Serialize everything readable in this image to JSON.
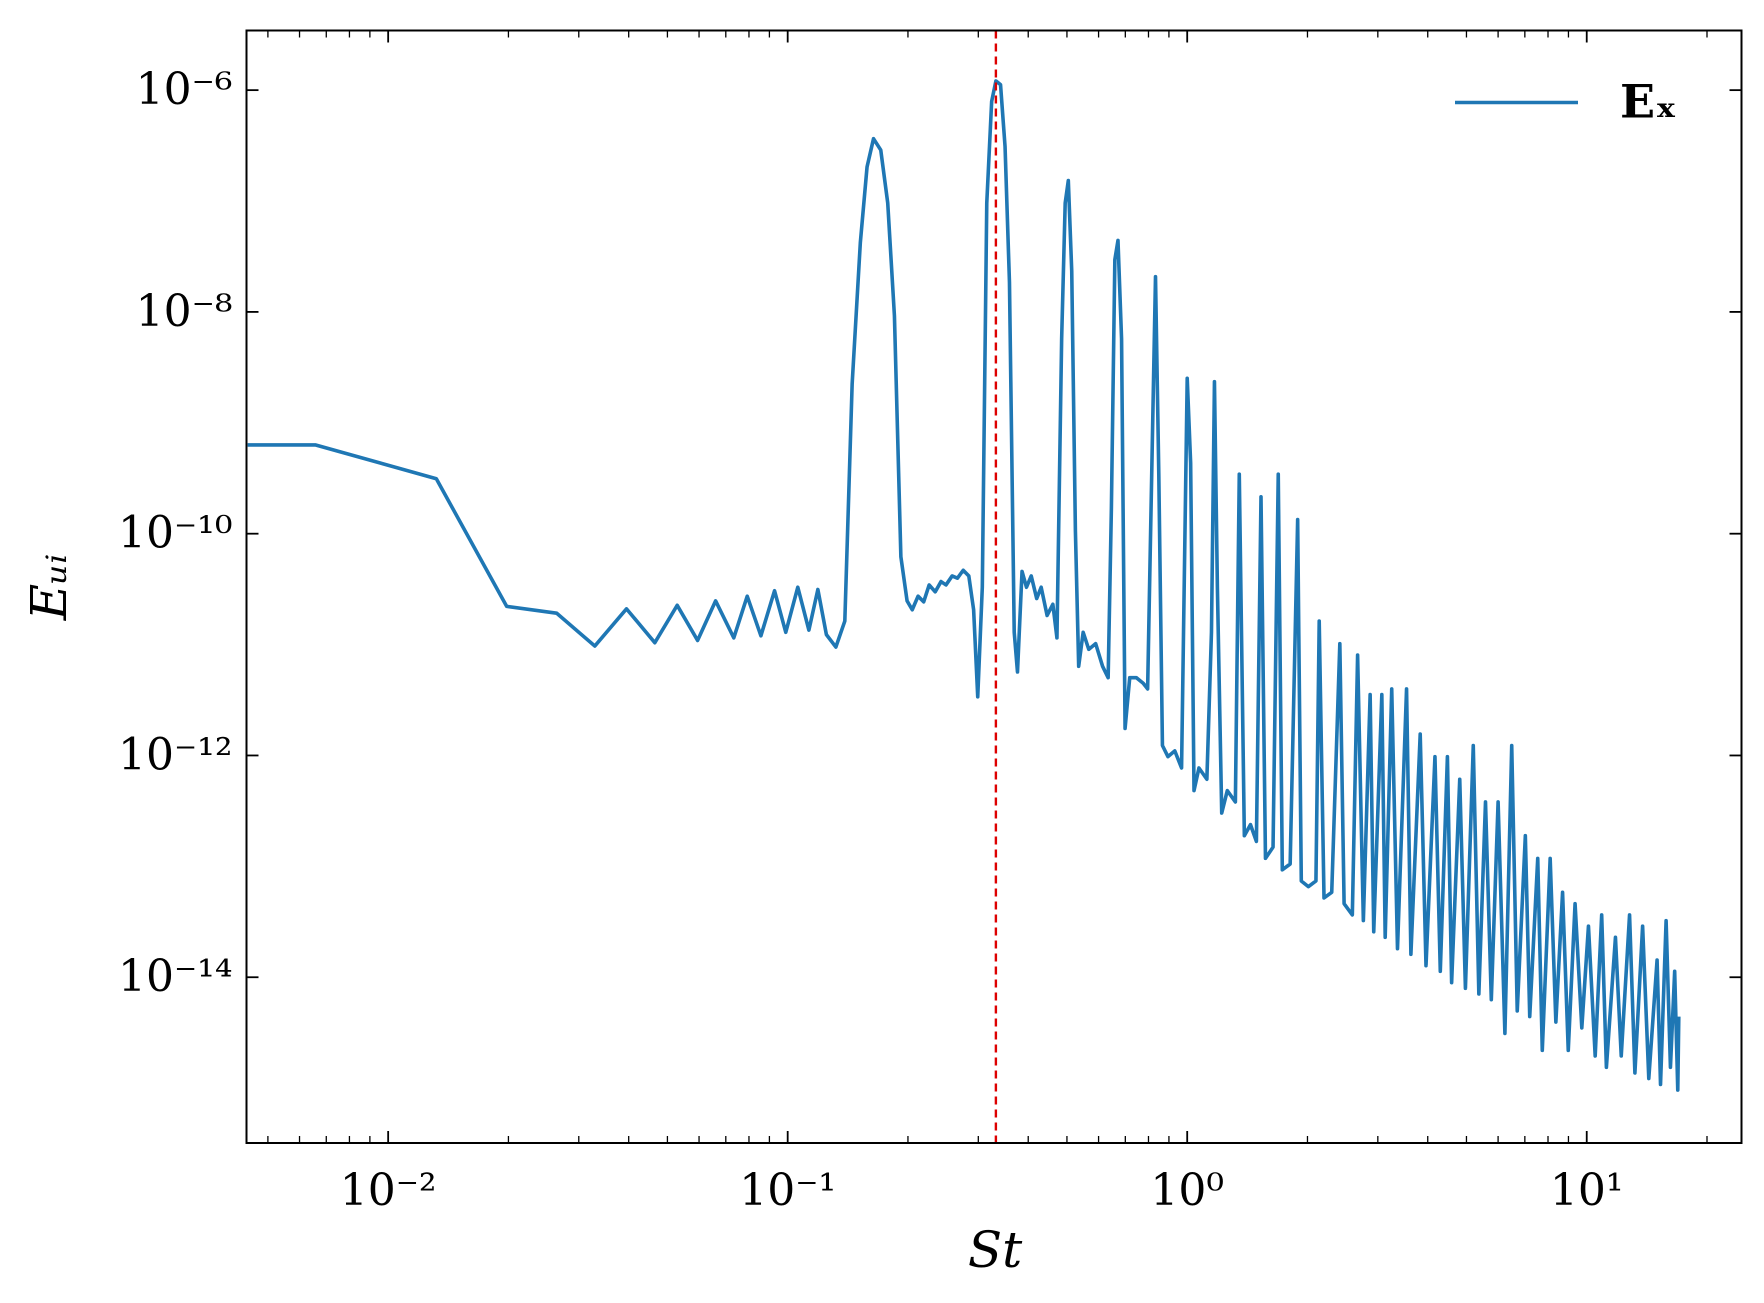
{
  "chart_data": {
    "type": "line",
    "xlabel": "St",
    "ylabel": "Eᵤᵢ",
    "xscale": "log",
    "yscale": "log",
    "xlim": [
      0.00442,
      24.4
    ],
    "ylim": [
      3.2e-16,
      3.45e-06
    ],
    "xticks": [
      {
        "value": 0.01,
        "label": "10⁻²"
      },
      {
        "value": 0.1,
        "label": "10⁻¹"
      },
      {
        "value": 1,
        "label": "10⁰"
      },
      {
        "value": 10,
        "label": "10¹"
      }
    ],
    "yticks": [
      {
        "value": 1e-14,
        "label": "10⁻¹⁴"
      },
      {
        "value": 1e-12,
        "label": "10⁻¹²"
      },
      {
        "value": 1e-10,
        "label": "10⁻¹⁰"
      },
      {
        "value": 1e-08,
        "label": "10⁻⁸"
      },
      {
        "value": 1e-06,
        "label": "10⁻⁶"
      }
    ],
    "minor_ticks": {
      "x": true,
      "y": false
    },
    "grid": false,
    "legend": "upper right",
    "vline": {
      "x": 0.332,
      "color": "#dd0000",
      "dashed": true
    },
    "x": [
      0.00445,
      0.00657,
      0.0132,
      0.0198,
      0.0264,
      0.0329,
      0.0395,
      0.0465,
      0.0529,
      0.0595,
      0.066,
      0.0733,
      0.0792,
      0.0857,
      0.0927,
      0.0989,
      0.106,
      0.113,
      0.119,
      0.125,
      0.132,
      0.139,
      0.145,
      0.152,
      0.158,
      0.164,
      0.171,
      0.178,
      0.185,
      0.192,
      0.199,
      0.205,
      0.212,
      0.219,
      0.226,
      0.234,
      0.242,
      0.249,
      0.258,
      0.266,
      0.275,
      0.284,
      0.292,
      0.299,
      0.307,
      0.315,
      0.324,
      0.332,
      0.341,
      0.35,
      0.359,
      0.369,
      0.376,
      0.386,
      0.396,
      0.407,
      0.42,
      0.431,
      0.446,
      0.461,
      0.472,
      0.485,
      0.495,
      0.504,
      0.514,
      0.525,
      0.535,
      0.549,
      0.567,
      0.59,
      0.614,
      0.634,
      0.646,
      0.659,
      0.671,
      0.685,
      0.699,
      0.718,
      0.746,
      0.776,
      0.796,
      0.817,
      0.833,
      0.849,
      0.867,
      0.895,
      0.931,
      0.968,
      1.0,
      1.02,
      1.04,
      1.07,
      1.12,
      1.15,
      1.17,
      1.19,
      1.22,
      1.26,
      1.32,
      1.35,
      1.39,
      1.44,
      1.49,
      1.53,
      1.57,
      1.64,
      1.69,
      1.73,
      1.81,
      1.89,
      1.93,
      2.01,
      2.1,
      2.14,
      2.2,
      2.3,
      2.41,
      2.47,
      2.59,
      2.67,
      2.76,
      2.87,
      2.93,
      3.07,
      3.13,
      3.25,
      3.36,
      3.54,
      3.63,
      3.83,
      3.96,
      4.17,
      4.3,
      4.48,
      4.59,
      4.81,
      4.97,
      5.2,
      5.37,
      5.58,
      5.77,
      6.0,
      6.24,
      6.49,
      6.7,
      7.02,
      7.2,
      7.54,
      7.74,
      8.1,
      8.37,
      8.7,
      8.99,
      9.35,
      9.72,
      10.1,
      10.5,
      10.9,
      11.2,
      11.8,
      12.2,
      12.8,
      13.2,
      13.8,
      14.3,
      15.0,
      15.3,
      15.8,
      16.2,
      16.6,
      16.9,
      17.0
    ],
    "series": [
      {
        "name": "Eₓ",
        "color": "#1f77b4",
        "values": [
          6.32e-10,
          6.32e-10,
          3.13e-10,
          2.21e-11,
          1.92e-11,
          9.7e-12,
          2.1e-11,
          1.04e-11,
          2.26e-11,
          1.09e-11,
          2.48e-11,
          1.15e-11,
          2.73e-11,
          1.2e-11,
          3.06e-11,
          1.29e-11,
          3.29e-11,
          1.35e-11,
          3.14e-11,
          1.23e-11,
          9.5e-12,
          1.63e-11,
          2.24e-09,
          4.21e-08,
          2.03e-07,
          3.65e-07,
          2.88e-07,
          9.6e-08,
          9.2e-09,
          6.2e-11,
          2.48e-11,
          2.06e-11,
          2.73e-11,
          2.43e-11,
          3.45e-11,
          2.99e-11,
          3.7e-11,
          3.45e-11,
          4.16e-11,
          3.97e-11,
          4.68e-11,
          4.16e-11,
          2.06e-11,
          3.38e-12,
          3.29e-11,
          9.6e-08,
          7.91e-07,
          1.21e-06,
          1.12e-06,
          3.1e-07,
          1.85e-08,
          1.29e-11,
          5.66e-12,
          4.57e-11,
          3.29e-11,
          4.16e-11,
          2.6e-11,
          3.29e-11,
          1.83e-11,
          2.31e-11,
          1.15e-11,
          5.74e-09,
          9.6e-08,
          1.53e-07,
          2.34e-08,
          1.06e-10,
          6.37e-12,
          1.29e-11,
          9.06e-12,
          1.02e-11,
          6.37e-12,
          5.03e-12,
          1.7e-10,
          2.96e-08,
          4.41e-08,
          5.74e-09,
          1.75e-12,
          5.03e-12,
          5.03e-12,
          4.48e-12,
          3.98e-12,
          5.49e-10,
          2.08e-08,
          3.44e-10,
          1.23e-12,
          9.75e-13,
          1.1e-12,
          7.71e-13,
          2.52e-09,
          4.35e-10,
          4.82e-13,
          7.71e-13,
          6.1e-13,
          1.29e-11,
          2.35e-09,
          3.29e-11,
          3.02e-13,
          4.82e-13,
          3.81e-13,
          3.44e-10,
          1.89e-13,
          2.38e-13,
          1.68e-13,
          2.15e-10,
          1.18e-13,
          1.49e-13,
          3.44e-10,
          9.3e-14,
          1.05e-13,
          1.34e-10,
          7.38e-14,
          6.56e-14,
          7.38e-14,
          1.63e-11,
          5.19e-14,
          5.83e-14,
          1.02e-11,
          4.61e-14,
          3.65e-14,
          8.05e-12,
          3.24e-14,
          3.54e-12,
          2.57e-14,
          3.54e-12,
          2.29e-14,
          3.98e-12,
          1.81e-14,
          3.98e-12,
          1.61e-14,
          1.56e-12,
          1.27e-14,
          9.75e-13,
          1.13e-14,
          9.75e-13,
          8.94e-15,
          6.1e-13,
          7.94e-15,
          1.23e-12,
          7.06e-15,
          3.81e-13,
          6.28e-15,
          3.81e-13,
          3.11e-15,
          1.23e-12,
          4.97e-15,
          1.89e-13,
          4.42e-15,
          1.18e-13,
          2.19e-15,
          1.18e-13,
          3.94e-15,
          5.83e-14,
          2.19e-15,
          4.61e-14,
          3.49e-15,
          2.89e-14,
          1.95e-15,
          3.65e-14,
          1.54e-15,
          2.29e-14,
          1.95e-15,
          3.65e-14,
          1.37e-15,
          2.89e-14,
          1.22e-15,
          1.43e-14,
          1.08e-15,
          3.24e-14,
          1.54e-15,
          1.13e-14,
          9.6e-16,
          4.42e-15
        ]
      }
    ]
  }
}
